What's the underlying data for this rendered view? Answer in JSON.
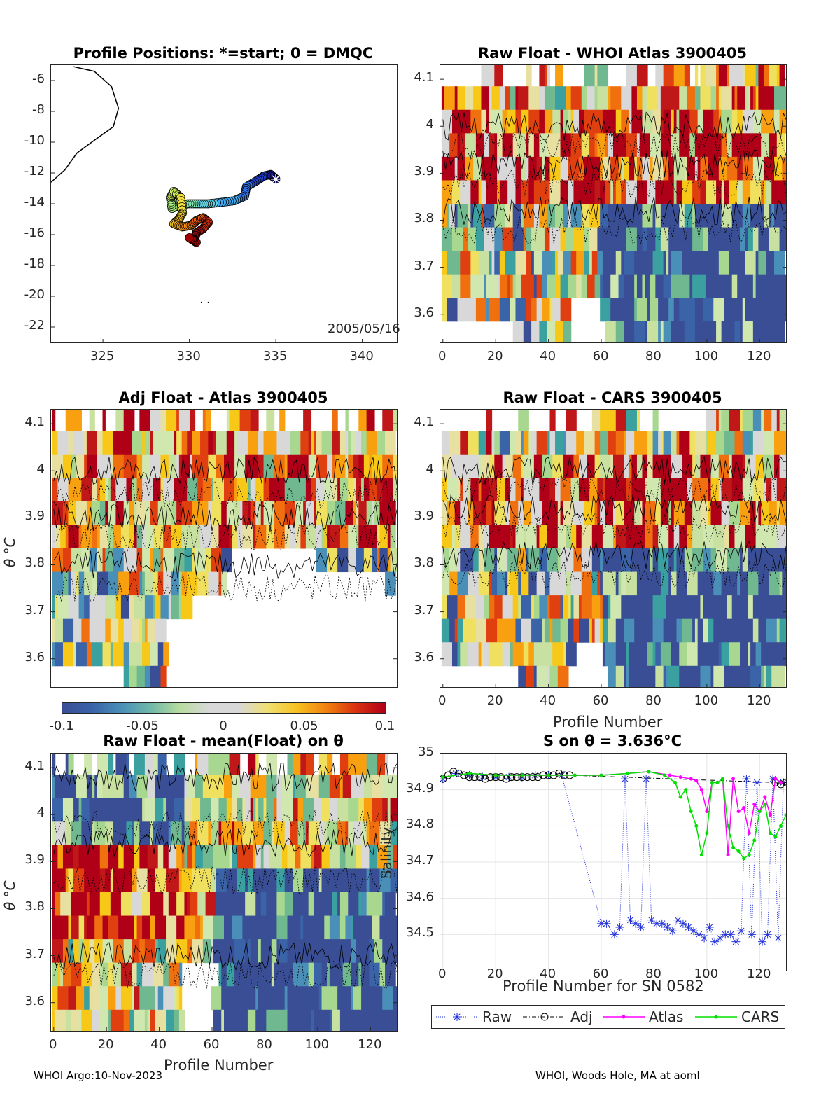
{
  "footer": {
    "left": "WHOI Argo:10-Nov-2023",
    "right": "WHOI, Woods Hole, MA at aoml"
  },
  "colorbar": {
    "ticks": [
      "-0.1",
      "-0.05",
      "0",
      "0.05",
      "0.1"
    ],
    "range": [
      -0.1,
      0.1
    ]
  },
  "chart_data": [
    {
      "id": "positions",
      "type": "scatter",
      "title": "Profile Positions: *=start; 0 = DMQC",
      "annotation": "2005/05/16",
      "xlim": [
        322,
        342
      ],
      "ylim": [
        -23,
        -5
      ],
      "xticks": [
        "325",
        "330",
        "335",
        "340"
      ],
      "yticks": [
        "-6",
        "-8",
        "-10",
        "-12",
        "-14",
        "-16",
        "-18",
        "-20",
        "-22"
      ],
      "coastline": [
        [
          323.3,
          -5.1
        ],
        [
          324.5,
          -5.4
        ],
        [
          325.5,
          -6.4
        ],
        [
          325.9,
          -7.8
        ],
        [
          325.6,
          -9.0
        ],
        [
          324.6,
          -9.8
        ],
        [
          323.5,
          -10.7
        ],
        [
          322.8,
          -11.8
        ],
        [
          322.0,
          -12.6
        ]
      ],
      "track": [
        [
          335.0,
          -12.4
        ],
        [
          334.7,
          -12.1
        ],
        [
          334.3,
          -12.2
        ],
        [
          333.9,
          -12.5
        ],
        [
          333.3,
          -12.9
        ],
        [
          333.2,
          -13.5
        ],
        [
          332.6,
          -13.8
        ],
        [
          331.9,
          -13.9
        ],
        [
          331.1,
          -14.0
        ],
        [
          330.5,
          -14.0
        ],
        [
          329.9,
          -14.0
        ],
        [
          329.4,
          -14.1
        ],
        [
          329.0,
          -14.3
        ],
        [
          328.9,
          -13.6
        ],
        [
          329.1,
          -13.2
        ],
        [
          329.5,
          -13.6
        ],
        [
          329.6,
          -14.6
        ],
        [
          329.4,
          -15.0
        ],
        [
          329.1,
          -15.3
        ],
        [
          329.6,
          -15.5
        ],
        [
          330.1,
          -15.4
        ],
        [
          330.4,
          -15.1
        ],
        [
          330.8,
          -14.9
        ],
        [
          331.1,
          -15.2
        ],
        [
          330.8,
          -15.6
        ],
        [
          330.4,
          -15.9
        ],
        [
          330.3,
          -16.3
        ],
        [
          330.4,
          -16.5
        ],
        [
          330.0,
          -16.2
        ]
      ]
    },
    {
      "id": "raw_whoi",
      "type": "heatmap",
      "title": "Raw Float - WHOI Atlas  3900405",
      "xlim": [
        -1,
        130
      ],
      "ylim": [
        3.54,
        4.13
      ],
      "xticks": [
        "0",
        "20",
        "40",
        "60",
        "80",
        "100",
        "120"
      ],
      "yticks": [
        "4.1",
        "4",
        "3.9",
        "3.8",
        "3.7",
        "3.6"
      ],
      "ylabel": ""
    },
    {
      "id": "adj_atlas",
      "type": "heatmap",
      "title": "Adj Float - Atlas  3900405",
      "xlim": [
        -1,
        130
      ],
      "ylim": [
        3.54,
        4.13
      ],
      "xticks": [],
      "yticks": [
        "4.1",
        "4",
        "3.9",
        "3.8",
        "3.7",
        "3.6"
      ],
      "ylabel": "θ °C"
    },
    {
      "id": "raw_cars",
      "type": "heatmap",
      "title": "Raw Float - CARS  3900405",
      "xlim": [
        -1,
        130
      ],
      "ylim": [
        3.54,
        4.13
      ],
      "xticks": [
        "0",
        "20",
        "40",
        "60",
        "80",
        "100",
        "120"
      ],
      "yticks": [
        "4.1",
        "4",
        "3.9",
        "3.8",
        "3.7",
        "3.6"
      ],
      "xlabel": "Profile Number"
    },
    {
      "id": "raw_mean",
      "type": "heatmap",
      "title": "Raw Float - mean(Float) on θ",
      "xlim": [
        -1,
        130
      ],
      "ylim": [
        3.54,
        4.13
      ],
      "xticks": [
        "0",
        "20",
        "40",
        "60",
        "80",
        "100",
        "120"
      ],
      "yticks": [
        "4.1",
        "4",
        "3.9",
        "3.8",
        "3.7",
        "3.6"
      ],
      "xlabel": "Profile Number",
      "ylabel": "θ °C"
    },
    {
      "id": "salinity",
      "type": "line",
      "title": "S on θ = 3.636°C",
      "xlabel": "Profile Number for SN 0582",
      "ylabel": "Salinity",
      "xlim": [
        -1,
        130
      ],
      "ylim": [
        34.4,
        35.0
      ],
      "xticks": [
        "0",
        "20",
        "40",
        "60",
        "80",
        "100",
        "120"
      ],
      "yticks": [
        "35",
        "34.9",
        "34.8",
        "34.7",
        "34.6",
        "34.5"
      ],
      "legend": [
        "Raw",
        "Adj",
        "Atlas",
        "CARS"
      ],
      "series": [
        {
          "name": "Raw",
          "color": "#1f2fd8",
          "x": [
            0,
            5,
            10,
            15,
            20,
            25,
            30,
            35,
            40,
            45,
            60,
            62,
            65,
            67,
            69,
            71,
            73,
            75,
            77,
            79,
            81,
            83,
            85,
            87,
            89,
            91,
            93,
            95,
            97,
            99,
            101,
            103,
            105,
            107,
            109,
            111,
            113,
            115,
            117,
            119,
            121,
            123,
            125,
            127,
            129
          ],
          "y": [
            34.93,
            34.945,
            34.94,
            34.935,
            34.935,
            34.935,
            34.935,
            34.94,
            34.94,
            34.94,
            34.53,
            34.53,
            34.5,
            34.52,
            34.93,
            34.54,
            34.53,
            34.52,
            34.93,
            34.54,
            34.53,
            34.53,
            34.52,
            34.51,
            34.54,
            34.53,
            34.52,
            34.51,
            34.5,
            34.49,
            34.52,
            34.48,
            34.49,
            34.5,
            34.5,
            34.48,
            34.51,
            34.93,
            34.5,
            34.92,
            34.48,
            34.5,
            34.93,
            34.49,
            34.92
          ]
        },
        {
          "name": "Adj",
          "color": "#000000",
          "x": [
            0,
            2,
            4,
            6,
            8,
            10,
            12,
            14,
            16,
            18,
            20,
            22,
            24,
            26,
            28,
            30,
            32,
            34,
            36,
            38,
            40,
            42,
            44,
            46,
            48,
            126,
            128,
            130
          ],
          "y": [
            34.93,
            34.94,
            34.95,
            34.945,
            34.94,
            34.935,
            34.935,
            34.935,
            34.93,
            34.935,
            34.935,
            34.935,
            34.93,
            34.935,
            34.935,
            34.935,
            34.935,
            34.935,
            34.935,
            34.94,
            34.94,
            34.94,
            34.945,
            34.94,
            34.94,
            34.92,
            34.915,
            34.92
          ]
        },
        {
          "name": "Atlas",
          "color": "#ff00ff",
          "x": [
            0,
            10,
            20,
            30,
            40,
            50,
            60,
            70,
            78,
            86,
            90,
            94,
            96,
            98,
            100,
            102,
            104,
            106,
            108,
            110,
            112,
            114,
            116,
            118,
            120,
            122,
            124,
            126,
            128
          ],
          "y": [
            34.935,
            34.945,
            34.94,
            34.94,
            34.94,
            34.94,
            34.94,
            34.945,
            34.95,
            34.94,
            34.935,
            34.93,
            34.925,
            34.9,
            34.84,
            34.92,
            34.92,
            34.93,
            34.72,
            34.93,
            34.84,
            34.85,
            34.78,
            34.86,
            34.84,
            34.88,
            34.83,
            34.93,
            34.92
          ]
        },
        {
          "name": "CARS",
          "color": "#00e000",
          "x": [
            0,
            10,
            20,
            30,
            40,
            50,
            60,
            70,
            78,
            84,
            88,
            90,
            92,
            94,
            96,
            98,
            100,
            102,
            104,
            106,
            108,
            110,
            112,
            114,
            116,
            118,
            120,
            122,
            124,
            126,
            128,
            130
          ],
          "y": [
            34.935,
            34.945,
            34.94,
            34.94,
            34.94,
            34.94,
            34.94,
            34.945,
            34.95,
            34.94,
            34.92,
            34.88,
            34.9,
            34.84,
            34.8,
            34.72,
            34.78,
            34.92,
            34.92,
            34.93,
            34.8,
            34.74,
            34.73,
            34.71,
            34.72,
            34.76,
            34.84,
            34.86,
            34.78,
            34.77,
            34.8,
            34.83
          ]
        }
      ]
    }
  ]
}
